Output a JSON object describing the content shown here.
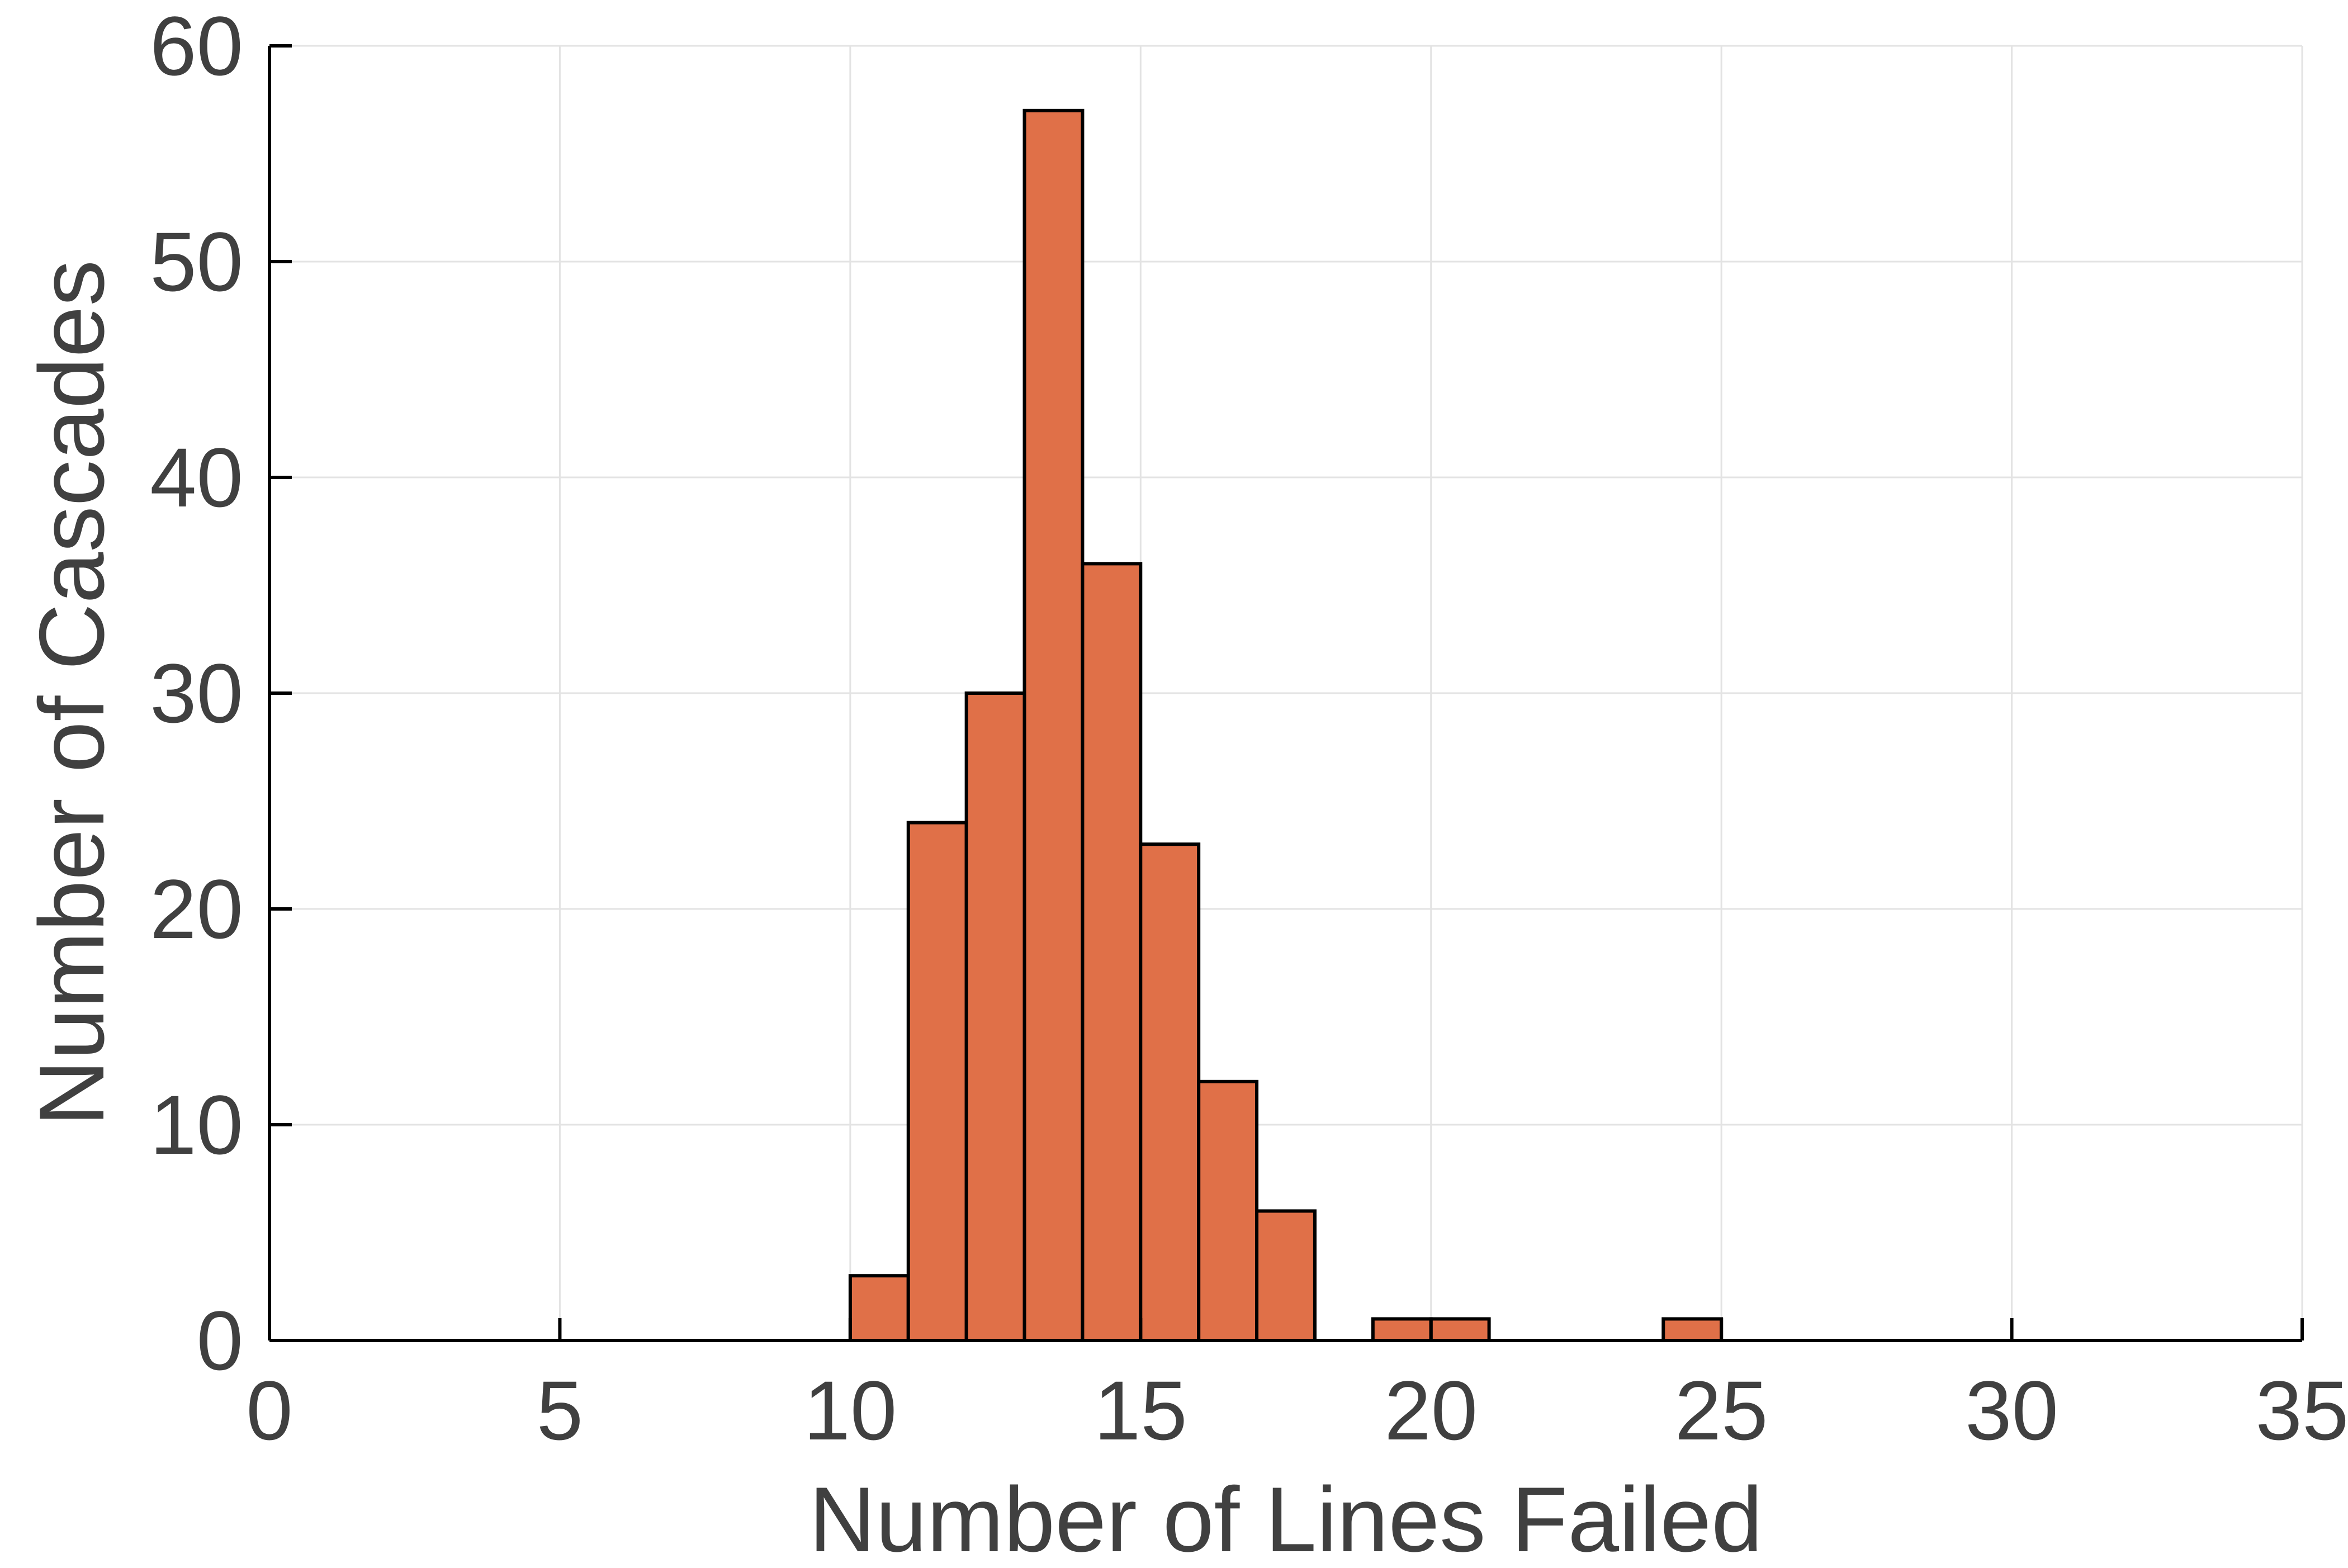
{
  "chart_data": {
    "type": "bar",
    "title": "",
    "xlabel": "Number of Lines Failed",
    "ylabel": "Number of Cascades",
    "xlim": [
      0,
      35
    ],
    "ylim": [
      0,
      60
    ],
    "xticks": [
      "0",
      "5",
      "10",
      "15",
      "20",
      "25",
      "30",
      "35"
    ],
    "yticks": [
      "0",
      "10",
      "20",
      "30",
      "40",
      "50",
      "60"
    ],
    "grid": true,
    "bin_edges": [
      [
        10,
        11
      ],
      [
        11,
        12
      ],
      [
        12,
        13
      ],
      [
        13,
        14
      ],
      [
        14,
        15
      ],
      [
        15,
        16
      ],
      [
        16,
        17
      ],
      [
        17,
        18
      ],
      [
        19,
        20
      ],
      [
        20,
        21
      ],
      [
        24,
        25
      ]
    ],
    "values": [
      3,
      24,
      30,
      57,
      36,
      23,
      12,
      6,
      1,
      1,
      1
    ],
    "colors": {
      "bar": "#E07048",
      "bar_edge": "#000000",
      "grid": "#E3E3E3",
      "axis": "#000000",
      "text": "#404040"
    }
  }
}
